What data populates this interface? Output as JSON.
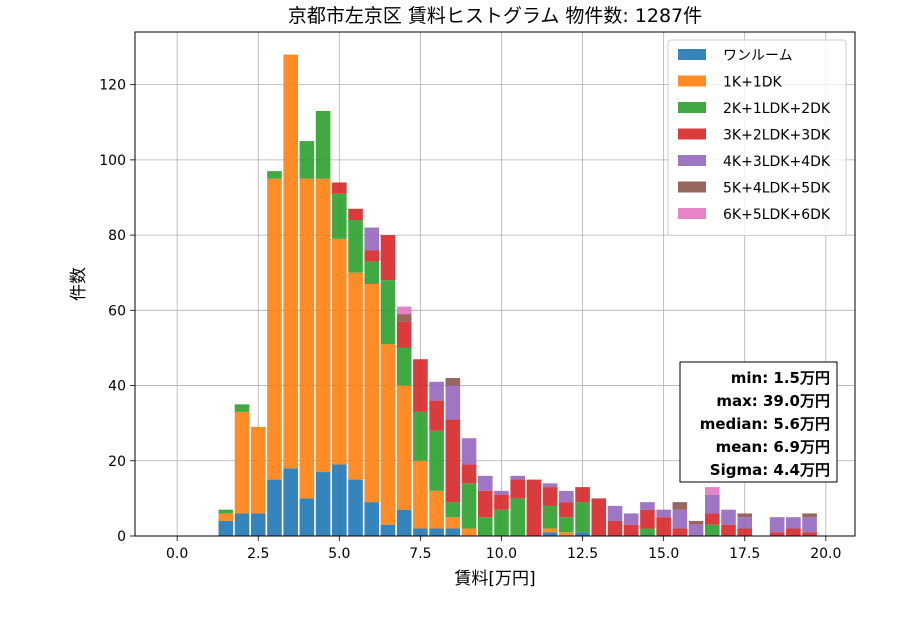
{
  "chart_data": {
    "type": "bar",
    "stacked": true,
    "title": "京都市左京区 賃料ヒストグラム  物件数: 1287件",
    "xlabel": "賃料[万円]",
    "ylabel": "件数",
    "xlim": [
      -1.3,
      20.9
    ],
    "ylim": [
      0,
      134
    ],
    "xticks": [
      0.0,
      2.5,
      5.0,
      7.5,
      10.0,
      12.5,
      15.0,
      17.5,
      20.0
    ],
    "xtick_labels": [
      "0.0",
      "2.5",
      "5.0",
      "7.5",
      "10.0",
      "12.5",
      "15.0",
      "17.5",
      "20.0"
    ],
    "yticks": [
      0,
      20,
      40,
      60,
      80,
      100,
      120
    ],
    "ytick_labels": [
      "0",
      "20",
      "40",
      "60",
      "80",
      "100",
      "120"
    ],
    "grid": true,
    "legend_position": "top-right",
    "bin_width": 0.5,
    "bin_lefts": [
      1.25,
      1.75,
      2.25,
      2.75,
      3.25,
      3.75,
      4.25,
      4.75,
      5.25,
      5.75,
      6.25,
      6.75,
      7.25,
      7.75,
      8.25,
      8.75,
      9.25,
      9.75,
      10.25,
      10.75,
      11.25,
      11.75,
      12.25,
      12.75,
      13.25,
      13.75,
      14.25,
      14.75,
      15.25,
      15.75,
      16.25,
      16.75,
      17.25,
      17.75,
      18.25,
      18.75,
      19.25
    ],
    "series": [
      {
        "name": "ワンルーム",
        "color": "#1f77b4",
        "values": [
          4,
          6,
          6,
          15,
          18,
          10,
          17,
          19,
          15,
          9,
          3,
          7,
          2,
          2,
          2,
          0,
          0,
          0,
          0,
          0,
          1,
          0,
          1,
          0,
          0,
          0,
          0,
          0,
          0,
          0,
          0,
          0,
          0,
          0,
          0,
          0,
          0
        ]
      },
      {
        "name": "1K+1DK",
        "color": "#ff7f0e",
        "values": [
          2,
          27,
          23,
          80,
          110,
          85,
          78,
          60,
          55,
          58,
          48,
          33,
          18,
          10,
          3,
          2,
          0,
          0,
          0,
          0,
          1,
          1,
          0,
          0,
          0,
          0,
          0,
          0,
          0,
          0,
          0,
          0,
          0,
          0,
          0,
          0,
          0
        ]
      },
      {
        "name": "2K+1LDK+2DK",
        "color": "#2ca02c",
        "values": [
          1,
          2,
          0,
          2,
          0,
          10,
          18,
          12,
          14,
          6,
          17,
          10,
          13,
          16,
          4,
          12,
          5,
          7,
          10,
          0,
          6,
          4,
          8,
          0,
          0,
          0,
          2,
          0,
          0,
          0,
          3,
          0,
          0,
          0,
          0,
          0,
          0
        ]
      },
      {
        "name": "3K+2LDK+3DK",
        "color": "#d62728",
        "values": [
          0,
          0,
          0,
          0,
          0,
          0,
          0,
          3,
          3,
          3,
          12,
          7,
          14,
          8,
          22,
          5,
          7,
          4,
          5,
          15,
          5,
          4,
          4,
          10,
          4,
          3,
          5,
          5,
          2,
          0,
          3,
          3,
          2,
          0,
          1,
          2,
          1
        ]
      },
      {
        "name": "4K+3LDK+4DK",
        "color": "#9467bd",
        "values": [
          0,
          0,
          0,
          0,
          0,
          0,
          0,
          0,
          0,
          6,
          0,
          0,
          0,
          5,
          9,
          7,
          4,
          1,
          1,
          0,
          1,
          3,
          0,
          0,
          4,
          3,
          2,
          2,
          5,
          3,
          5,
          4,
          3,
          0,
          4,
          3,
          4
        ]
      },
      {
        "name": "5K+4LDK+5DK",
        "color": "#8c564b",
        "values": [
          0,
          0,
          0,
          0,
          0,
          0,
          0,
          0,
          0,
          0,
          0,
          2,
          0,
          0,
          2,
          0,
          0,
          0,
          0,
          0,
          0,
          0,
          0,
          0,
          0,
          0,
          0,
          0,
          2,
          1,
          0,
          0,
          1,
          0,
          0,
          0,
          1
        ]
      },
      {
        "name": "6K+5LDK+6DK",
        "color": "#e377c2",
        "values": [
          0,
          0,
          0,
          0,
          0,
          0,
          0,
          0,
          0,
          0,
          0,
          2,
          0,
          0,
          0,
          0,
          0,
          0,
          0,
          0,
          0,
          0,
          0,
          0,
          0,
          0,
          0,
          0,
          0,
          0,
          2,
          0,
          0,
          0,
          0,
          0,
          0
        ]
      }
    ],
    "stats_lines": [
      "min: 1.5万円",
      "max: 39.0万円",
      "median: 5.6万円",
      "mean: 6.9万円",
      "Sigma: 4.4万円"
    ]
  }
}
